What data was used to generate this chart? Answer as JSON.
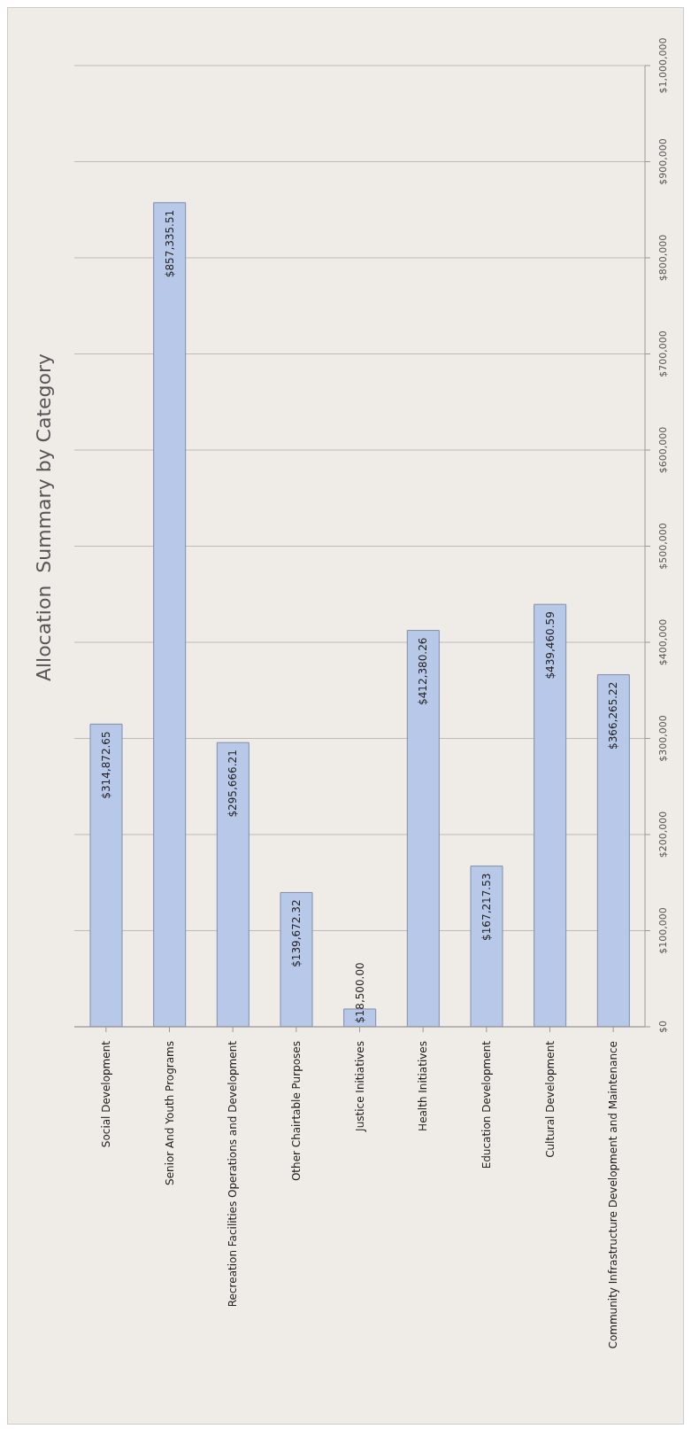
{
  "chart_data": {
    "type": "bar",
    "title": "Allocation  Summary by Category",
    "categories": [
      "Social Development",
      "Senior And Youth Programs",
      "Recreation Facilities Operations and Development",
      "Other Chairtable Purposes",
      "Justice Initiatives",
      "Health Initiatives",
      "Education Development",
      "Cultural Development",
      "Community Infrastructure Development and Maintenance"
    ],
    "values": [
      314872.65,
      857335.51,
      295666.21,
      139672.32,
      18500.0,
      412380.26,
      167217.53,
      439460.59,
      366265.22
    ],
    "value_labels": [
      "$314,872.65",
      "$857,335.51",
      "$295,666.21",
      "$139,672.32",
      "$18,500.00",
      "$412,380.26",
      "$167,217.53",
      "$439,460.59",
      "$366,265.22"
    ],
    "color": "#b8c8e8",
    "ylim": [
      0,
      1000000
    ],
    "yticks": [
      {
        "value": 0,
        "label": "$0"
      },
      {
        "value": 100000,
        "label": "$100,000"
      },
      {
        "value": 200000,
        "label": "$200,000"
      },
      {
        "value": 300000,
        "label": "$300,000"
      },
      {
        "value": 400000,
        "label": "$400,000"
      },
      {
        "value": 500000,
        "label": "$500,000"
      },
      {
        "value": 600000,
        "label": "$600,000"
      },
      {
        "value": 700000,
        "label": "$700,000"
      },
      {
        "value": 800000,
        "label": "$800,000"
      },
      {
        "value": 900000,
        "label": "$900,000"
      },
      {
        "value": 1000000,
        "label": "$1,000,000"
      }
    ],
    "grid": "y"
  }
}
